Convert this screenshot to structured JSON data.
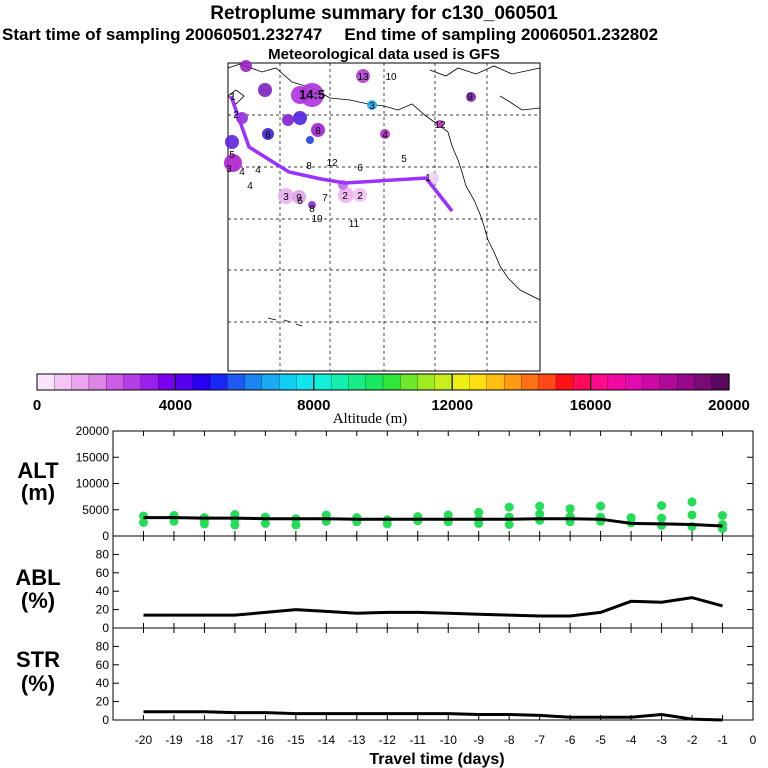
{
  "header": {
    "title": "Retroplume summary for c130_060501",
    "start_label": "Start time of sampling 20060501.232747",
    "end_label": "End time of sampling 20060501.232802",
    "met_label": "Meteorological data used is GFS"
  },
  "colors": {
    "trajectory": "#9b30ff",
    "points": "#22dd55",
    "line": "#000000"
  },
  "colorbar": {
    "label": "Altitude (m)",
    "min": 0,
    "max": 20000,
    "ticks": [
      "0",
      "4000",
      "8000",
      "12000",
      "16000",
      "20000"
    ],
    "colors": [
      "#fde4fd",
      "#f5c6f5",
      "#eaa5ee",
      "#dd84e8",
      "#cc5de6",
      "#b43fe6",
      "#9a20ea",
      "#7b00ee",
      "#5500f0",
      "#2a00f5",
      "#1a28f5",
      "#1e5af2",
      "#1a84f0",
      "#18aaf2",
      "#10cdf2",
      "#10e6ee",
      "#12f0d8",
      "#14f0b0",
      "#18ee88",
      "#1ae860",
      "#30e63a",
      "#6ee82a",
      "#a0ea22",
      "#c8ee1e",
      "#eef014",
      "#ffde10",
      "#ffbe10",
      "#ff9a14",
      "#ff7016",
      "#ff4a18",
      "#ff1018",
      "#ff0a5a",
      "#ff0a8a",
      "#f20aa0",
      "#e20ab0",
      "#cc0aa8",
      "#b00a9a",
      "#960a8a",
      "#7a0a76",
      "#5a0a5e"
    ]
  },
  "map": {
    "labels": [
      "14:5",
      "13",
      "10",
      "3",
      "9",
      "12",
      "8",
      "6",
      "1",
      "2",
      "12",
      "6",
      "5",
      "4",
      "3",
      "9",
      "7",
      "2",
      "2",
      "11",
      "10",
      "8",
      "6",
      "4",
      "3",
      "1",
      "5",
      "8",
      "4",
      "4"
    ]
  },
  "chart_data": [
    {
      "type": "scatter",
      "name": "altitude",
      "ylabel": "ALT\n(m)",
      "ylim": [
        0,
        20000
      ],
      "yticks": [
        0,
        5000,
        10000,
        15000,
        20000
      ],
      "x": [
        -20,
        -19,
        -18,
        -17,
        -16,
        -15,
        -14,
        -13,
        -12,
        -11,
        -10,
        -9,
        -8,
        -7,
        -6,
        -5,
        -4,
        -3,
        -2,
        -1
      ],
      "line": [
        3500,
        3500,
        3400,
        3400,
        3300,
        3300,
        3300,
        3200,
        3200,
        3200,
        3200,
        3200,
        3200,
        3300,
        3300,
        3200,
        2400,
        2300,
        2200,
        1900
      ],
      "points": [
        [
          -20,
          3800
        ],
        [
          -20,
          2600
        ],
        [
          -19,
          3900
        ],
        [
          -19,
          2800
        ],
        [
          -18,
          3500
        ],
        [
          -18,
          2300
        ],
        [
          -18,
          3000
        ],
        [
          -17,
          4100
        ],
        [
          -17,
          3200
        ],
        [
          -17,
          2100
        ],
        [
          -16,
          3600
        ],
        [
          -16,
          2400
        ],
        [
          -15,
          3300
        ],
        [
          -15,
          2100
        ],
        [
          -14,
          4000
        ],
        [
          -14,
          2800
        ],
        [
          -13,
          3500
        ],
        [
          -13,
          2700
        ],
        [
          -12,
          3100
        ],
        [
          -12,
          2300
        ],
        [
          -11,
          3700
        ],
        [
          -11,
          2900
        ],
        [
          -10,
          4000
        ],
        [
          -10,
          2700
        ],
        [
          -9,
          4500
        ],
        [
          -9,
          3200
        ],
        [
          -9,
          2400
        ],
        [
          -8,
          5500
        ],
        [
          -8,
          3600
        ],
        [
          -8,
          2200
        ],
        [
          -7,
          5700
        ],
        [
          -7,
          4200
        ],
        [
          -7,
          3000
        ],
        [
          -6,
          5200
        ],
        [
          -6,
          3700
        ],
        [
          -6,
          2700
        ],
        [
          -5,
          5700
        ],
        [
          -5,
          3600
        ],
        [
          -5,
          2800
        ],
        [
          -4,
          3500
        ],
        [
          -4,
          2500
        ],
        [
          -3,
          5800
        ],
        [
          -3,
          3400
        ],
        [
          -3,
          2000
        ],
        [
          -2,
          6500
        ],
        [
          -2,
          4000
        ],
        [
          -2,
          1800
        ],
        [
          -1,
          3900
        ],
        [
          -1,
          2200
        ],
        [
          -1,
          1400
        ]
      ]
    },
    {
      "type": "line",
      "name": "abl",
      "ylabel": "ABL\n(%)",
      "ylim": [
        0,
        100
      ],
      "yticks": [
        0,
        20,
        40,
        60,
        80
      ],
      "x": [
        -20,
        -19,
        -18,
        -17,
        -16,
        -15,
        -14,
        -13,
        -12,
        -11,
        -10,
        -9,
        -8,
        -7,
        -6,
        -5,
        -4,
        -3,
        -2,
        -1
      ],
      "values": [
        14,
        14,
        14,
        14,
        17,
        20,
        18,
        16,
        17,
        17,
        16,
        15,
        14,
        13,
        13,
        17,
        29,
        28,
        33,
        24
      ]
    },
    {
      "type": "line",
      "name": "str",
      "ylabel": "STR\n(%)",
      "ylim": [
        0,
        100
      ],
      "yticks": [
        0,
        20,
        40,
        60,
        80
      ],
      "x": [
        -20,
        -19,
        -18,
        -17,
        -16,
        -15,
        -14,
        -13,
        -12,
        -11,
        -10,
        -9,
        -8,
        -7,
        -6,
        -5,
        -4,
        -3,
        -2,
        -1
      ],
      "values": [
        9,
        9,
        9,
        8,
        8,
        7,
        7,
        7,
        7,
        7,
        7,
        6,
        6,
        5,
        3,
        3,
        3,
        6,
        1,
        0
      ]
    }
  ],
  "xaxis": {
    "label": "Travel time (days)",
    "ticks": [
      "-20",
      "-19",
      "-18",
      "-17",
      "-16",
      "-15",
      "-14",
      "-13",
      "-12",
      "-11",
      "-10",
      "-9",
      "-8",
      "-7",
      "-6",
      "-5",
      "-4",
      "-3",
      "-2",
      "-1",
      "0"
    ]
  },
  "panels": {
    "alt_label_line1": "ALT",
    "alt_label_line2": "(m)",
    "abl_label_line1": "ABL",
    "abl_label_line2": "(%)",
    "str_label_line1": "STR",
    "str_label_line2": "(%)"
  }
}
